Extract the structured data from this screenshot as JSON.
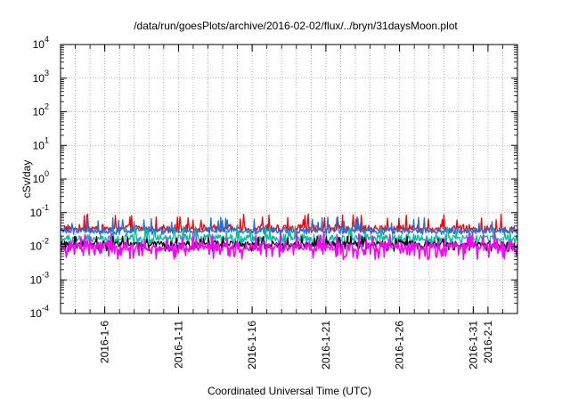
{
  "chart_data": {
    "type": "line",
    "title": "/data/run/goesPlots/archive/2016-02-02/flux/../bryn/31daysMoon.plot",
    "xlabel": "Coordinated Universal Time (UTC)",
    "ylabel": "cSv/day",
    "yscale": "log",
    "ylim": [
      0.0001,
      10000
    ],
    "y_ticks": [
      {
        "base": "10",
        "exp": "-4"
      },
      {
        "base": "10",
        "exp": "-3"
      },
      {
        "base": "10",
        "exp": "-2"
      },
      {
        "base": "10",
        "exp": "-1"
      },
      {
        "base": "10",
        "exp": "0"
      },
      {
        "base": "10",
        "exp": "1"
      },
      {
        "base": "10",
        "exp": "2"
      },
      {
        "base": "10",
        "exp": "3"
      },
      {
        "base": "10",
        "exp": "4"
      }
    ],
    "xlim": [
      "2016-01-03",
      "2016-02-03"
    ],
    "x_ticks": [
      "2016-1-6",
      "2016-1-11",
      "2016-1-16",
      "2016-1-21",
      "2016-1-26",
      "2016-1-31",
      "2016-2-1"
    ],
    "grid": true,
    "series": [
      {
        "color": "#ff0000",
        "typical": 0.035,
        "low": 0.025,
        "high": 0.1
      },
      {
        "color": "#1e6fe0",
        "typical": 0.03,
        "low": 0.022,
        "high": 0.075
      },
      {
        "color": "#00bfa0",
        "typical": 0.018,
        "low": 0.01,
        "high": 0.04
      },
      {
        "color": "#000000",
        "typical": 0.012,
        "low": 0.007,
        "high": 0.02
      },
      {
        "color": "#ff00ff",
        "typical": 0.01,
        "low": 0.004,
        "high": 0.025
      }
    ]
  }
}
